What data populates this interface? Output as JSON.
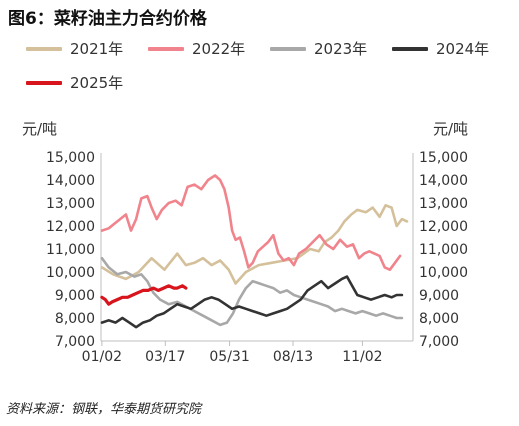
{
  "header": {
    "title": "图6：菜籽油主力合约价格"
  },
  "source": "资料来源：钢联，华泰期货研究院",
  "chart_data": {
    "type": "line",
    "ylabel_left": "元/吨",
    "ylabel_right": "元/吨",
    "ylim": [
      7000,
      15000
    ],
    "yticks": [
      7000,
      8000,
      9000,
      10000,
      11000,
      12000,
      13000,
      14000,
      15000
    ],
    "ytick_labels": [
      "7,000",
      "8,000",
      "9,000",
      "10,000",
      "11,000",
      "12,000",
      "13,000",
      "14,000",
      "15,000"
    ],
    "xlim": [
      1,
      365
    ],
    "xticks": [
      {
        "day": 2,
        "label": "01/02"
      },
      {
        "day": 76,
        "label": "03/17"
      },
      {
        "day": 151,
        "label": "05/31"
      },
      {
        "day": 225,
        "label": "08/13"
      },
      {
        "day": 306,
        "label": "11/02"
      }
    ],
    "grid": false,
    "legend_position": "top",
    "series": [
      {
        "name": "2021年",
        "color": "#d4c09a",
        "points": [
          [
            2,
            10200
          ],
          [
            15,
            9900
          ],
          [
            30,
            9700
          ],
          [
            45,
            10000
          ],
          [
            60,
            10600
          ],
          [
            75,
            10100
          ],
          [
            90,
            10800
          ],
          [
            100,
            10300
          ],
          [
            110,
            10400
          ],
          [
            120,
            10600
          ],
          [
            130,
            10300
          ],
          [
            140,
            10500
          ],
          [
            150,
            10100
          ],
          [
            158,
            9500
          ],
          [
            170,
            10000
          ],
          [
            185,
            10300
          ],
          [
            200,
            10400
          ],
          [
            215,
            10500
          ],
          [
            230,
            10600
          ],
          [
            245,
            11000
          ],
          [
            255,
            10900
          ],
          [
            262,
            11300
          ],
          [
            270,
            11500
          ],
          [
            278,
            11800
          ],
          [
            285,
            12200
          ],
          [
            293,
            12500
          ],
          [
            300,
            12700
          ],
          [
            310,
            12600
          ],
          [
            318,
            12800
          ],
          [
            326,
            12400
          ],
          [
            333,
            12900
          ],
          [
            340,
            12800
          ],
          [
            346,
            12000
          ],
          [
            352,
            12300
          ],
          [
            358,
            12200
          ]
        ]
      },
      {
        "name": "2022年",
        "color": "#f0838c",
        "points": [
          [
            2,
            11800
          ],
          [
            10,
            11900
          ],
          [
            20,
            12200
          ],
          [
            30,
            12500
          ],
          [
            36,
            11800
          ],
          [
            42,
            12300
          ],
          [
            48,
            13200
          ],
          [
            55,
            13300
          ],
          [
            60,
            12800
          ],
          [
            66,
            12300
          ],
          [
            72,
            12700
          ],
          [
            80,
            13000
          ],
          [
            88,
            13100
          ],
          [
            95,
            12900
          ],
          [
            102,
            13700
          ],
          [
            110,
            13800
          ],
          [
            118,
            13600
          ],
          [
            126,
            14000
          ],
          [
            134,
            14200
          ],
          [
            140,
            14000
          ],
          [
            145,
            13600
          ],
          [
            150,
            12800
          ],
          [
            154,
            11800
          ],
          [
            158,
            11400
          ],
          [
            163,
            11500
          ],
          [
            168,
            10900
          ],
          [
            173,
            10200
          ],
          [
            178,
            10400
          ],
          [
            184,
            10900
          ],
          [
            190,
            11100
          ],
          [
            196,
            11300
          ],
          [
            202,
            11600
          ],
          [
            208,
            10800
          ],
          [
            214,
            10500
          ],
          [
            220,
            10600
          ],
          [
            226,
            10300
          ],
          [
            232,
            10800
          ],
          [
            240,
            11000
          ],
          [
            248,
            11300
          ],
          [
            256,
            11600
          ],
          [
            264,
            11200
          ],
          [
            272,
            11000
          ],
          [
            280,
            11400
          ],
          [
            288,
            11100
          ],
          [
            295,
            11200
          ],
          [
            302,
            10600
          ],
          [
            308,
            10800
          ],
          [
            314,
            10900
          ],
          [
            320,
            10800
          ],
          [
            326,
            10700
          ],
          [
            332,
            10200
          ],
          [
            338,
            10100
          ],
          [
            344,
            10400
          ],
          [
            350,
            10700
          ]
        ]
      },
      {
        "name": "2023年",
        "color": "#a8a8a8",
        "points": [
          [
            2,
            10600
          ],
          [
            10,
            10200
          ],
          [
            20,
            9900
          ],
          [
            30,
            10000
          ],
          [
            40,
            9800
          ],
          [
            48,
            9900
          ],
          [
            55,
            9600
          ],
          [
            62,
            9100
          ],
          [
            70,
            8800
          ],
          [
            80,
            8600
          ],
          [
            90,
            8700
          ],
          [
            100,
            8500
          ],
          [
            110,
            8300
          ],
          [
            120,
            8100
          ],
          [
            130,
            7900
          ],
          [
            140,
            7700
          ],
          [
            148,
            7800
          ],
          [
            155,
            8200
          ],
          [
            162,
            8800
          ],
          [
            170,
            9300
          ],
          [
            178,
            9600
          ],
          [
            186,
            9500
          ],
          [
            194,
            9400
          ],
          [
            202,
            9300
          ],
          [
            210,
            9100
          ],
          [
            218,
            9200
          ],
          [
            226,
            9000
          ],
          [
            234,
            8900
          ],
          [
            242,
            8800
          ],
          [
            250,
            8700
          ],
          [
            258,
            8600
          ],
          [
            266,
            8500
          ],
          [
            274,
            8300
          ],
          [
            282,
            8400
          ],
          [
            290,
            8300
          ],
          [
            298,
            8200
          ],
          [
            306,
            8300
          ],
          [
            314,
            8200
          ],
          [
            322,
            8100
          ],
          [
            330,
            8200
          ],
          [
            338,
            8100
          ],
          [
            346,
            8000
          ],
          [
            352,
            8000
          ]
        ]
      },
      {
        "name": "2024年",
        "color": "#333333",
        "points": [
          [
            2,
            7800
          ],
          [
            10,
            7900
          ],
          [
            18,
            7800
          ],
          [
            26,
            8000
          ],
          [
            34,
            7800
          ],
          [
            42,
            7600
          ],
          [
            50,
            7800
          ],
          [
            58,
            7900
          ],
          [
            66,
            8100
          ],
          [
            74,
            8200
          ],
          [
            82,
            8400
          ],
          [
            90,
            8600
          ],
          [
            98,
            8500
          ],
          [
            106,
            8400
          ],
          [
            114,
            8600
          ],
          [
            122,
            8800
          ],
          [
            130,
            8900
          ],
          [
            138,
            8800
          ],
          [
            146,
            8600
          ],
          [
            154,
            8400
          ],
          [
            162,
            8500
          ],
          [
            170,
            8400
          ],
          [
            178,
            8300
          ],
          [
            186,
            8200
          ],
          [
            194,
            8100
          ],
          [
            202,
            8200
          ],
          [
            210,
            8300
          ],
          [
            218,
            8400
          ],
          [
            226,
            8600
          ],
          [
            234,
            8800
          ],
          [
            242,
            9200
          ],
          [
            250,
            9400
          ],
          [
            258,
            9600
          ],
          [
            266,
            9300
          ],
          [
            274,
            9500
          ],
          [
            282,
            9700
          ],
          [
            288,
            9800
          ],
          [
            294,
            9400
          ],
          [
            300,
            9000
          ],
          [
            308,
            8900
          ],
          [
            316,
            8800
          ],
          [
            324,
            8900
          ],
          [
            332,
            9000
          ],
          [
            340,
            8900
          ],
          [
            346,
            9000
          ],
          [
            352,
            9000
          ]
        ]
      },
      {
        "name": "2025年",
        "color": "#d8141c",
        "points": [
          [
            2,
            8900
          ],
          [
            6,
            8800
          ],
          [
            10,
            8600
          ],
          [
            14,
            8700
          ],
          [
            20,
            8800
          ],
          [
            26,
            8900
          ],
          [
            32,
            8900
          ],
          [
            38,
            9000
          ],
          [
            44,
            9100
          ],
          [
            50,
            9200
          ],
          [
            56,
            9200
          ],
          [
            62,
            9300
          ],
          [
            68,
            9200
          ],
          [
            74,
            9300
          ],
          [
            80,
            9400
          ],
          [
            86,
            9300
          ],
          [
            90,
            9300
          ],
          [
            96,
            9400
          ],
          [
            100,
            9300
          ]
        ]
      }
    ]
  }
}
